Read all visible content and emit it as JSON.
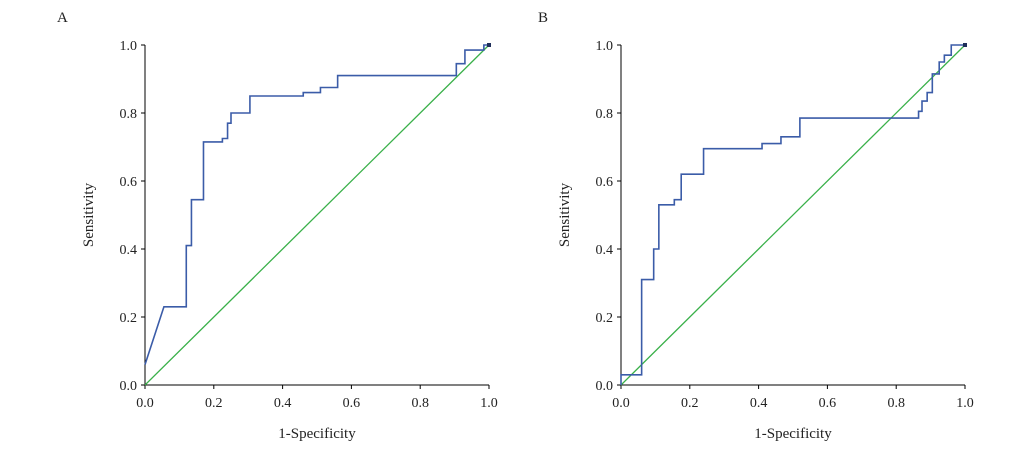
{
  "figure": {
    "chart_data": [
      {
        "type": "line",
        "panel_label": "A",
        "xlabel": "1-Specificity",
        "ylabel": "Sensitivity",
        "xlim": [
          0,
          1
        ],
        "ylim": [
          0,
          1
        ],
        "xticks": [
          "0.0",
          "0.2",
          "0.4",
          "0.6",
          "0.8",
          "1.0"
        ],
        "yticks": [
          "0.0",
          "0.2",
          "0.4",
          "0.6",
          "0.8",
          "1.0"
        ],
        "grid": false,
        "legend": "none",
        "series": [
          {
            "role": "roc",
            "color": "#3b5ca8",
            "points": [
              [
                0.0,
                0.06
              ],
              [
                0.055,
                0.23
              ],
              [
                0.12,
                0.23
              ],
              [
                0.12,
                0.41
              ],
              [
                0.135,
                0.41
              ],
              [
                0.135,
                0.545
              ],
              [
                0.17,
                0.545
              ],
              [
                0.17,
                0.715
              ],
              [
                0.225,
                0.715
              ],
              [
                0.225,
                0.725
              ],
              [
                0.24,
                0.725
              ],
              [
                0.24,
                0.77
              ],
              [
                0.25,
                0.77
              ],
              [
                0.25,
                0.8
              ],
              [
                0.305,
                0.8
              ],
              [
                0.305,
                0.85
              ],
              [
                0.46,
                0.85
              ],
              [
                0.46,
                0.86
              ],
              [
                0.51,
                0.86
              ],
              [
                0.51,
                0.875
              ],
              [
                0.56,
                0.875
              ],
              [
                0.56,
                0.91
              ],
              [
                0.905,
                0.91
              ],
              [
                0.905,
                0.945
              ],
              [
                0.93,
                0.945
              ],
              [
                0.93,
                0.985
              ],
              [
                0.985,
                0.985
              ],
              [
                0.985,
                1.0
              ],
              [
                1.0,
                1.0
              ]
            ]
          },
          {
            "role": "reference",
            "color": "#39b049",
            "points": [
              [
                0,
                0
              ],
              [
                1,
                1
              ]
            ]
          }
        ]
      },
      {
        "type": "line",
        "panel_label": "B",
        "xlabel": "1-Specificity",
        "ylabel": "Sensitivity",
        "xlim": [
          0,
          1
        ],
        "ylim": [
          0,
          1
        ],
        "xticks": [
          "0.0",
          "0.2",
          "0.4",
          "0.6",
          "0.8",
          "1.0"
        ],
        "yticks": [
          "0.0",
          "0.2",
          "0.4",
          "0.6",
          "0.8",
          "1.0"
        ],
        "grid": false,
        "legend": "none",
        "series": [
          {
            "role": "roc",
            "color": "#3b5ca8",
            "points": [
              [
                0.0,
                0.0
              ],
              [
                0.0,
                0.03
              ],
              [
                0.06,
                0.03
              ],
              [
                0.06,
                0.31
              ],
              [
                0.095,
                0.31
              ],
              [
                0.095,
                0.4
              ],
              [
                0.11,
                0.4
              ],
              [
                0.11,
                0.53
              ],
              [
                0.155,
                0.53
              ],
              [
                0.155,
                0.545
              ],
              [
                0.175,
                0.545
              ],
              [
                0.175,
                0.62
              ],
              [
                0.24,
                0.62
              ],
              [
                0.24,
                0.695
              ],
              [
                0.41,
                0.695
              ],
              [
                0.41,
                0.71
              ],
              [
                0.465,
                0.71
              ],
              [
                0.465,
                0.73
              ],
              [
                0.52,
                0.73
              ],
              [
                0.52,
                0.785
              ],
              [
                0.865,
                0.785
              ],
              [
                0.865,
                0.805
              ],
              [
                0.875,
                0.805
              ],
              [
                0.875,
                0.835
              ],
              [
                0.89,
                0.835
              ],
              [
                0.89,
                0.86
              ],
              [
                0.905,
                0.86
              ],
              [
                0.905,
                0.915
              ],
              [
                0.925,
                0.915
              ],
              [
                0.925,
                0.95
              ],
              [
                0.94,
                0.95
              ],
              [
                0.94,
                0.97
              ],
              [
                0.96,
                0.97
              ],
              [
                0.96,
                1.0
              ],
              [
                1.0,
                1.0
              ]
            ]
          },
          {
            "role": "reference",
            "color": "#39b049",
            "points": [
              [
                0,
                0
              ],
              [
                1,
                1
              ]
            ]
          }
        ]
      }
    ]
  }
}
